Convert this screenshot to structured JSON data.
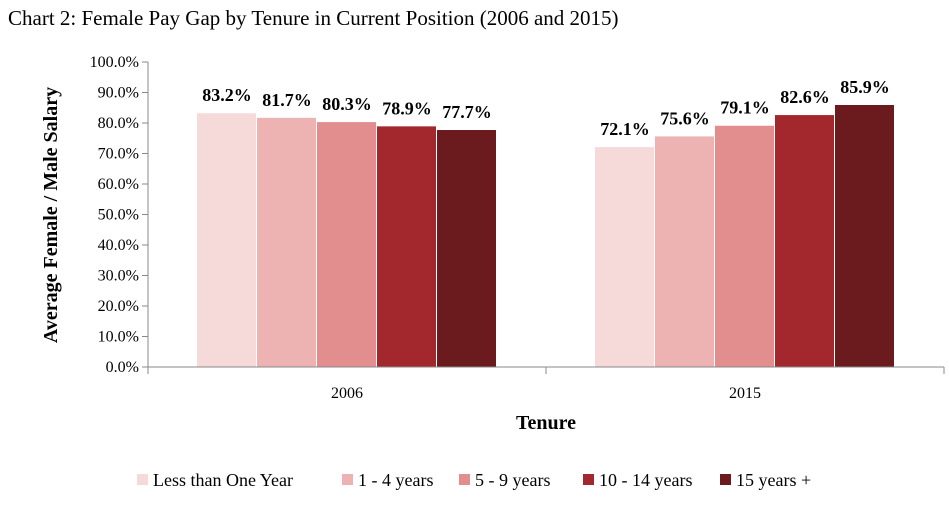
{
  "chart_data": {
    "type": "bar",
    "title": "Chart 2: Female Pay Gap by Tenure in Current Position (2006 and 2015)",
    "xlabel": "Tenure",
    "ylabel": "Average Female / Male Salary",
    "categories": [
      "2006",
      "2015"
    ],
    "ylim": [
      0,
      100
    ],
    "yticks": [
      "0.0%",
      "10.0%",
      "20.0%",
      "30.0%",
      "40.0%",
      "50.0%",
      "60.0%",
      "70.0%",
      "80.0%",
      "90.0%",
      "100.0%"
    ],
    "grid": false,
    "legend_position": "bottom",
    "series": [
      {
        "name": "Less than One Year",
        "color": "#f6d9d9",
        "values": [
          83.2,
          72.1
        ],
        "labels": [
          "83.2%",
          "72.1%"
        ]
      },
      {
        "name": "1 - 4 years",
        "color": "#edb3b3",
        "values": [
          81.7,
          75.6
        ],
        "labels": [
          "81.7%",
          "75.6%"
        ]
      },
      {
        "name": "5 - 9 years",
        "color": "#e28e8e",
        "values": [
          80.3,
          79.1
        ],
        "labels": [
          "80.3%",
          "79.1%"
        ]
      },
      {
        "name": "10 - 14 years",
        "color": "#a3282d",
        "values": [
          78.9,
          82.6
        ],
        "labels": [
          "78.9%",
          "82.6%"
        ]
      },
      {
        "name": "15 years +",
        "color": "#6b1a1d",
        "values": [
          77.7,
          85.9
        ],
        "labels": [
          "77.7%",
          "85.9%"
        ]
      }
    ]
  }
}
